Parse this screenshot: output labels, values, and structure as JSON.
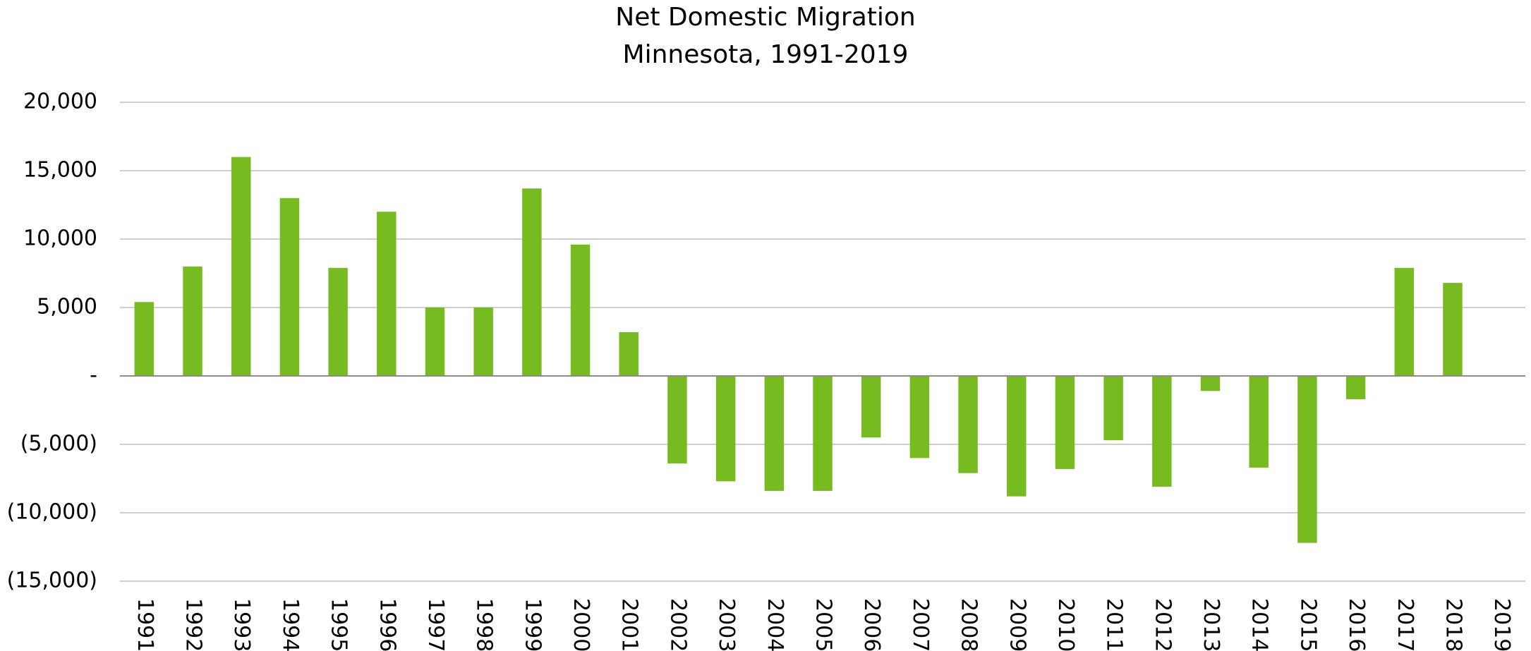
{
  "chart_data": {
    "type": "bar",
    "title": "Net Domestic Migration",
    "subtitle": "Minnesota, 1991-2019",
    "categories": [
      "1991",
      "1992",
      "1993",
      "1994",
      "1995",
      "1996",
      "1997",
      "1998",
      "1999",
      "2000",
      "2001",
      "2002",
      "2003",
      "2004",
      "2005",
      "2006",
      "2007",
      "2008",
      "2009",
      "2010",
      "2011",
      "2012",
      "2013",
      "2014",
      "2015",
      "2016",
      "2017",
      "2018",
      "2019"
    ],
    "values": [
      5400,
      8000,
      16000,
      13000,
      7900,
      12000,
      5000,
      5000,
      13700,
      9600,
      3200,
      -6400,
      -7700,
      -8400,
      -8400,
      -4500,
      -6000,
      -7100,
      -8800,
      -6800,
      -4700,
      -8100,
      -1100,
      -6700,
      -12200,
      -1700,
      7900,
      6800,
      0
    ],
    "color": "#76bc21",
    "ylim": [
      -15000,
      20000
    ],
    "yticks": [
      {
        "value": -15000,
        "label": "(15,000)"
      },
      {
        "value": -10000,
        "label": "(10,000)"
      },
      {
        "value": -5000,
        "label": "(5,000)"
      },
      {
        "value": 0,
        "label": "-"
      },
      {
        "value": 5000,
        "label": "5,000"
      },
      {
        "value": 10000,
        "label": "10,000"
      },
      {
        "value": 15000,
        "label": "15,000"
      },
      {
        "value": 20000,
        "label": "20,000"
      }
    ],
    "grid": true
  }
}
